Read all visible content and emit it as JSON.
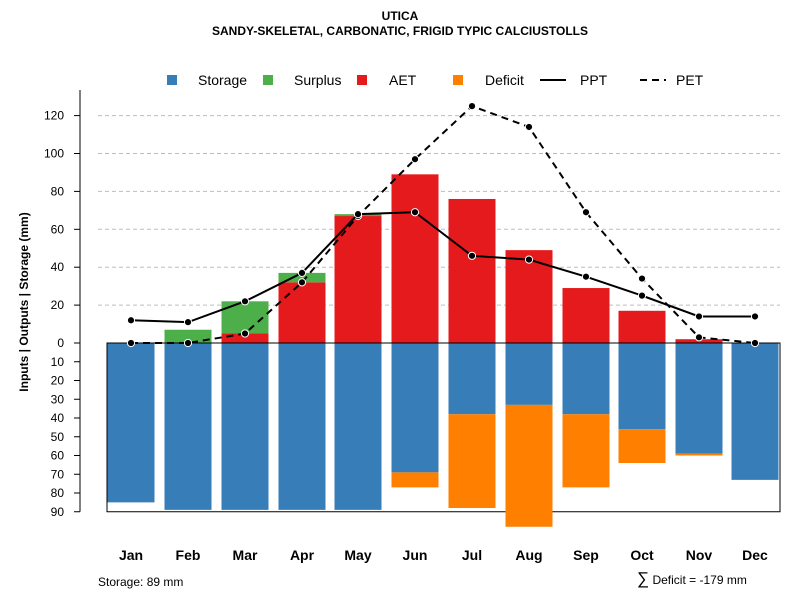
{
  "chart_data": {
    "type": "bar",
    "title": "UTICA",
    "subtitle": "SANDY-SKELETAL, CARBONATIC, FRIGID TYPIC CALCIUSTOLLS",
    "ylabel": "Inputs | Outputs | Storage     (mm)",
    "xlabel": "",
    "upper_ylim": [
      0,
      130
    ],
    "upper_ticks": [
      0,
      20,
      40,
      60,
      80,
      100,
      120
    ],
    "lower_ylim": [
      0,
      90
    ],
    "lower_ticks": [
      0,
      10,
      20,
      30,
      40,
      50,
      60,
      70,
      80,
      90
    ],
    "grid": true,
    "legend_position": "top",
    "categories": [
      "Jan",
      "Feb",
      "Mar",
      "Apr",
      "May",
      "Jun",
      "Jul",
      "Aug",
      "Sep",
      "Oct",
      "Nov",
      "Dec"
    ],
    "series": [
      {
        "name": "Storage",
        "kind": "bar-down",
        "color": "#377EB8",
        "values": [
          85,
          89,
          89,
          89,
          89,
          69,
          38,
          33,
          38,
          46,
          59,
          73
        ]
      },
      {
        "name": "Surplus",
        "kind": "bar-up-stack",
        "color": "#4DAF4A",
        "values": [
          0,
          7,
          17,
          5,
          1,
          0,
          0,
          0,
          0,
          0,
          0,
          0
        ]
      },
      {
        "name": "AET",
        "kind": "bar-up",
        "color": "#E41A1C",
        "values": [
          0,
          0,
          5,
          32,
          67,
          89,
          76,
          49,
          29,
          17,
          2,
          0
        ]
      },
      {
        "name": "Deficit",
        "kind": "bar-down-stack",
        "color": "#FF7F00",
        "values": [
          0,
          0,
          0,
          0,
          0,
          8,
          50,
          65,
          39,
          18,
          1,
          0
        ]
      },
      {
        "name": "PPT",
        "kind": "line",
        "dash": "solid",
        "color": "#000000",
        "values": [
          12,
          11,
          22,
          37,
          68,
          69,
          46,
          44,
          35,
          25,
          14,
          14
        ]
      },
      {
        "name": "PET",
        "kind": "line",
        "dash": "dashed",
        "color": "#000000",
        "values": [
          0,
          0,
          5,
          32,
          67,
          97,
          125,
          114,
          69,
          34,
          3,
          0
        ]
      }
    ]
  },
  "footer": {
    "storage_text": "Storage: 89 mm",
    "deficit_symbol": "∑",
    "deficit_text": "Deficit = -179 mm"
  }
}
